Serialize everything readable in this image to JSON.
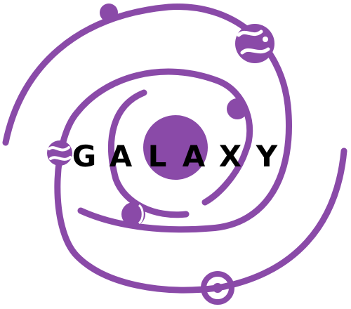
{
  "logo": {
    "wordmark": "GALAXY",
    "letters": [
      "G",
      "A",
      "L",
      "A",
      "X",
      "Y"
    ],
    "accent_color": "#8a4aa8",
    "text_color": "#000000",
    "background_color": "#ffffff"
  }
}
